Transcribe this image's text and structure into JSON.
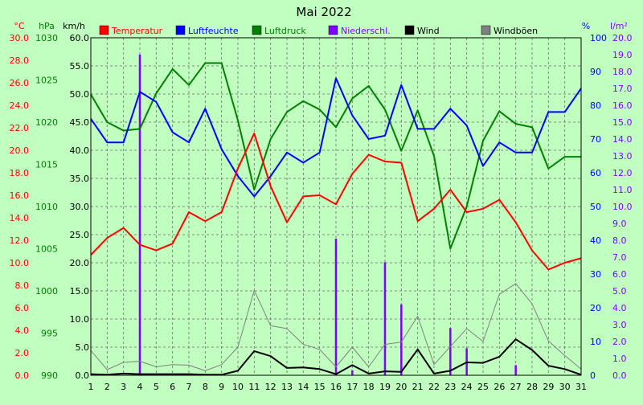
{
  "chart_data": {
    "type": "line",
    "title": "Mai 2022",
    "x": [
      1,
      2,
      3,
      4,
      5,
      6,
      7,
      8,
      9,
      10,
      11,
      12,
      13,
      14,
      15,
      16,
      17,
      18,
      19,
      20,
      21,
      22,
      23,
      24,
      25,
      26,
      27,
      28,
      29,
      30,
      31
    ],
    "xlim": [
      1,
      31
    ],
    "grid": true,
    "legend_position": "top",
    "axes": {
      "temp": {
        "unit": "°C",
        "min": 0,
        "max": 30,
        "ticks": [
          "0.0",
          "2.0",
          "4.0",
          "6.0",
          "8.0",
          "10.0",
          "12.0",
          "14.0",
          "16.0",
          "18.0",
          "20.0",
          "22.0",
          "24.0",
          "26.0",
          "28.0",
          "30.0"
        ],
        "color": "#ff0000"
      },
      "pressure": {
        "unit": "hPa",
        "min": 990,
        "max": 1030,
        "ticks": [
          "990",
          "995",
          "1000",
          "1005",
          "1010",
          "1015",
          "1020",
          "1025",
          "1030"
        ],
        "color": "#008000"
      },
      "speed": {
        "unit": "km/h",
        "min": 0,
        "max": 60,
        "ticks": [
          "0.0",
          "5.0",
          "10.0",
          "15.0",
          "20.0",
          "25.0",
          "30.0",
          "35.0",
          "40.0",
          "45.0",
          "50.0",
          "55.0",
          "60.0"
        ],
        "color": "#000000"
      },
      "humidity": {
        "unit": "%",
        "min": 0,
        "max": 100,
        "ticks": [
          "0",
          "10",
          "20",
          "30",
          "40",
          "50",
          "60",
          "70",
          "80",
          "90",
          "100"
        ],
        "color": "#0000ff"
      },
      "rain": {
        "unit": "l/m²",
        "min": 0,
        "max": 20,
        "ticks": [
          "0.0",
          "1.0",
          "2.0",
          "3.0",
          "4.0",
          "5.0",
          "6.0",
          "7.0",
          "8.0",
          "9.0",
          "10.0",
          "11.0",
          "12.0",
          "13.0",
          "14.0",
          "15.0",
          "16.0",
          "17.0",
          "18.0",
          "19.0",
          "20.0"
        ],
        "color": "#8000ff"
      }
    },
    "series": [
      {
        "name": "Temperatur",
        "axis": "temp",
        "kind": "line",
        "color": "#ff0000",
        "values": [
          10.7,
          12.2,
          13.1,
          11.6,
          11.1,
          11.7,
          14.5,
          13.7,
          14.5,
          18.4,
          21.5,
          16.8,
          13.6,
          15.9,
          16.0,
          15.2,
          17.9,
          19.6,
          19.0,
          18.9,
          13.7,
          14.8,
          16.5,
          14.5,
          14.8,
          15.6,
          13.6,
          11.1,
          9.4,
          10.0,
          10.4
        ]
      },
      {
        "name": "Luftfeuchte",
        "axis": "humidity",
        "kind": "line",
        "color": "#0000ff",
        "values": [
          76,
          69,
          69,
          84,
          81,
          72,
          69,
          79,
          67,
          59,
          53,
          59,
          66,
          63,
          66,
          88,
          77,
          70,
          71,
          86,
          73,
          73,
          79,
          74,
          62,
          69,
          66,
          66,
          78,
          78,
          85
        ]
      },
      {
        "name": "Luftdruck",
        "axis": "pressure",
        "kind": "line",
        "color": "#008000",
        "values": [
          1023.3,
          1020.0,
          1019.0,
          1019.2,
          1023.4,
          1026.3,
          1024.4,
          1027.0,
          1027.0,
          1020.2,
          1012.0,
          1018.0,
          1021.2,
          1022.5,
          1021.5,
          1019.4,
          1022.8,
          1024.3,
          1021.5,
          1016.6,
          1021.4,
          1016.0,
          1005.0,
          1010.0,
          1017.8,
          1021.3,
          1019.8,
          1019.4,
          1014.5,
          1015.9,
          1015.9
        ]
      },
      {
        "name": "Niederschl.",
        "axis": "rain",
        "kind": "bar",
        "color": "#8000ff",
        "values": [
          0,
          0,
          0,
          19.0,
          0,
          0,
          0,
          0,
          0,
          0,
          0,
          0,
          0,
          0,
          0,
          8.1,
          0.3,
          0,
          6.7,
          4.2,
          0,
          0,
          2.8,
          1.6,
          0,
          0,
          0.6,
          0,
          0,
          0,
          0
        ]
      },
      {
        "name": "Wind",
        "axis": "speed",
        "kind": "line",
        "color": "#000000",
        "values": [
          0.2,
          0.1,
          0.3,
          0.2,
          0.2,
          0.2,
          0.2,
          0.1,
          0.1,
          0.8,
          4.3,
          3.4,
          1.3,
          1.4,
          1.1,
          0.2,
          1.8,
          0.3,
          0.7,
          0.6,
          4.6,
          0.3,
          0.8,
          2.3,
          2.2,
          3.3,
          6.4,
          4.5,
          1.7,
          1.1,
          0.1
        ]
      },
      {
        "name": "Windböen",
        "axis": "speed",
        "kind": "line",
        "color": "#808080",
        "values": [
          4.4,
          1.0,
          2.3,
          2.5,
          1.5,
          1.9,
          1.8,
          0.8,
          1.9,
          5.0,
          15.1,
          8.8,
          8.3,
          5.5,
          4.6,
          1.5,
          5.0,
          1.5,
          5.5,
          5.9,
          10.5,
          1.9,
          5.1,
          8.3,
          6.0,
          14.4,
          16.3,
          12.7,
          6.1,
          3.5,
          1.1
        ]
      }
    ]
  }
}
